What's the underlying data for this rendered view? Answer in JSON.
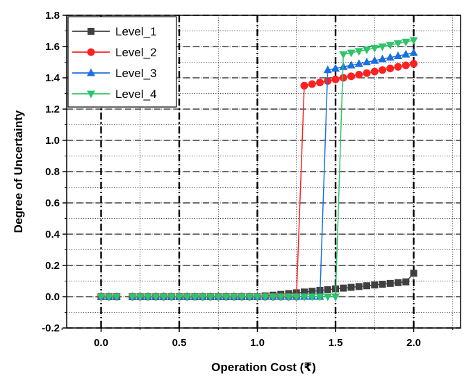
{
  "chart_data": {
    "type": "line",
    "title": "",
    "xlabel": "Operation Cost (₹)",
    "ylabel": "Degree of Uncertainty",
    "xlim": [
      -0.22,
      2.3
    ],
    "ylim": [
      -0.2,
      1.8
    ],
    "xticks": [
      "0.0",
      "0.5",
      "1.0",
      "1.5",
      "2.0"
    ],
    "yticks": [
      "-0.2",
      "0.0",
      "0.2",
      "0.4",
      "0.6",
      "0.8",
      "1.0",
      "1.2",
      "1.4",
      "1.6",
      "1.8"
    ],
    "grid": true,
    "legend_position": "top-left",
    "series": [
      {
        "name": "Level_1",
        "color": "#404040",
        "marker": "square",
        "x": [
          0,
          0.05,
          0.1,
          0.2,
          0.25,
          0.3,
          0.35,
          0.4,
          0.45,
          0.5,
          0.55,
          0.6,
          0.65,
          0.7,
          0.75,
          0.8,
          0.85,
          0.9,
          0.95,
          1.0,
          1.05,
          1.1,
          1.15,
          1.2,
          1.25,
          1.3,
          1.35,
          1.4,
          1.45,
          1.5,
          1.55,
          1.6,
          1.65,
          1.7,
          1.75,
          1.8,
          1.85,
          1.9,
          1.95,
          2.0
        ],
        "y": [
          0,
          0,
          0,
          0,
          0,
          0,
          0,
          0,
          0,
          0,
          0,
          0,
          0,
          0,
          0,
          0,
          0,
          0,
          0,
          0,
          0.005,
          0.01,
          0.015,
          0.02,
          0.025,
          0.03,
          0.035,
          0.04,
          0.045,
          0.05,
          0.055,
          0.06,
          0.065,
          0.07,
          0.075,
          0.08,
          0.085,
          0.09,
          0.095,
          0.15
        ]
      },
      {
        "name": "Level_2",
        "color": "#ff2020",
        "marker": "circle",
        "x": [
          0,
          0.05,
          0.1,
          0.2,
          0.25,
          0.3,
          0.35,
          0.4,
          0.45,
          0.5,
          0.55,
          0.6,
          0.65,
          0.7,
          0.75,
          0.8,
          0.85,
          0.9,
          0.95,
          1.0,
          1.05,
          1.1,
          1.15,
          1.2,
          1.25,
          1.3,
          1.35,
          1.4,
          1.45,
          1.5,
          1.55,
          1.6,
          1.65,
          1.7,
          1.75,
          1.8,
          1.85,
          1.9,
          1.95,
          2.0
        ],
        "y": [
          0,
          0,
          0,
          0,
          0,
          0,
          0,
          0,
          0,
          0,
          0,
          0,
          0,
          0,
          0,
          0,
          0,
          0,
          0,
          0,
          0,
          0,
          0,
          0,
          0,
          1.35,
          1.36,
          1.37,
          1.38,
          1.39,
          1.4,
          1.41,
          1.42,
          1.43,
          1.44,
          1.45,
          1.46,
          1.47,
          1.48,
          1.49
        ]
      },
      {
        "name": "Level_3",
        "color": "#1a6fe0",
        "marker": "triangle-up",
        "x": [
          0,
          0.05,
          0.1,
          0.2,
          0.25,
          0.3,
          0.35,
          0.4,
          0.45,
          0.5,
          0.55,
          0.6,
          0.65,
          0.7,
          0.75,
          0.8,
          0.85,
          0.9,
          0.95,
          1.0,
          1.05,
          1.1,
          1.15,
          1.2,
          1.25,
          1.3,
          1.35,
          1.4,
          1.45,
          1.5,
          1.55,
          1.6,
          1.65,
          1.7,
          1.75,
          1.8,
          1.85,
          1.9,
          1.95,
          2.0
        ],
        "y": [
          0,
          0,
          0,
          0,
          0,
          0,
          0,
          0,
          0,
          0,
          0,
          0,
          0,
          0,
          0,
          0,
          0,
          0,
          0,
          0,
          0,
          0,
          0,
          0,
          0,
          0,
          0,
          0,
          1.45,
          1.46,
          1.47,
          1.48,
          1.49,
          1.5,
          1.51,
          1.52,
          1.53,
          1.54,
          1.55,
          1.56
        ]
      },
      {
        "name": "Level_4",
        "color": "#2ec46a",
        "marker": "triangle-down",
        "x": [
          0,
          0.05,
          0.1,
          0.2,
          0.25,
          0.3,
          0.35,
          0.4,
          0.45,
          0.5,
          0.55,
          0.6,
          0.65,
          0.7,
          0.75,
          0.8,
          0.85,
          0.9,
          0.95,
          1.0,
          1.05,
          1.1,
          1.15,
          1.2,
          1.25,
          1.3,
          1.35,
          1.4,
          1.45,
          1.5,
          1.55,
          1.6,
          1.65,
          1.7,
          1.75,
          1.8,
          1.85,
          1.9,
          1.95,
          2.0
        ],
        "y": [
          0,
          0,
          0,
          0,
          0,
          0,
          0,
          0,
          0,
          0,
          0,
          0,
          0,
          0,
          0,
          0,
          0,
          0,
          0,
          0,
          0,
          0,
          0,
          0,
          0,
          0,
          0,
          0,
          0,
          0,
          1.55,
          1.56,
          1.57,
          1.58,
          1.59,
          1.6,
          1.61,
          1.62,
          1.63,
          1.64
        ]
      }
    ]
  }
}
